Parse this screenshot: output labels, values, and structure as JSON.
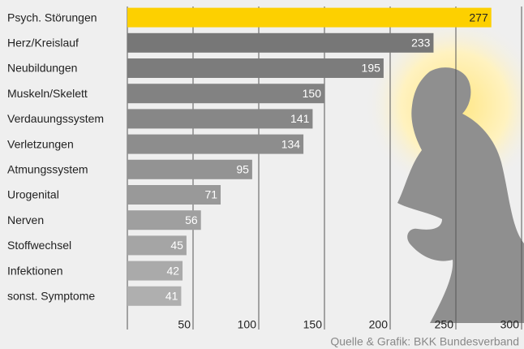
{
  "chart_data": {
    "type": "bar",
    "orientation": "horizontal",
    "categories": [
      "Psych. Störungen",
      "Herz/Kreislauf",
      "Neubildungen",
      "Muskeln/Skelett",
      "Verdauungssystem",
      "Verletzungen",
      "Atmungssystem",
      "Urogenital",
      "Nerven",
      "Stoffwechsel",
      "Infektionen",
      "sonst. Symptome"
    ],
    "values": [
      277,
      233,
      195,
      150,
      141,
      134,
      95,
      71,
      56,
      45,
      42,
      41
    ],
    "colors": [
      "#fdd000",
      "#777777",
      "#7c7c7c",
      "#828282",
      "#878787",
      "#8d8d8d",
      "#939393",
      "#999999",
      "#9f9f9f",
      "#a5a5a5",
      "#aaaaaa",
      "#afafaf"
    ],
    "xlim": [
      0,
      300
    ],
    "xticks": [
      50,
      100,
      150,
      200,
      250,
      300
    ],
    "grid": true,
    "source": "Quelle & Grafik: BKK Bundesverband"
  }
}
